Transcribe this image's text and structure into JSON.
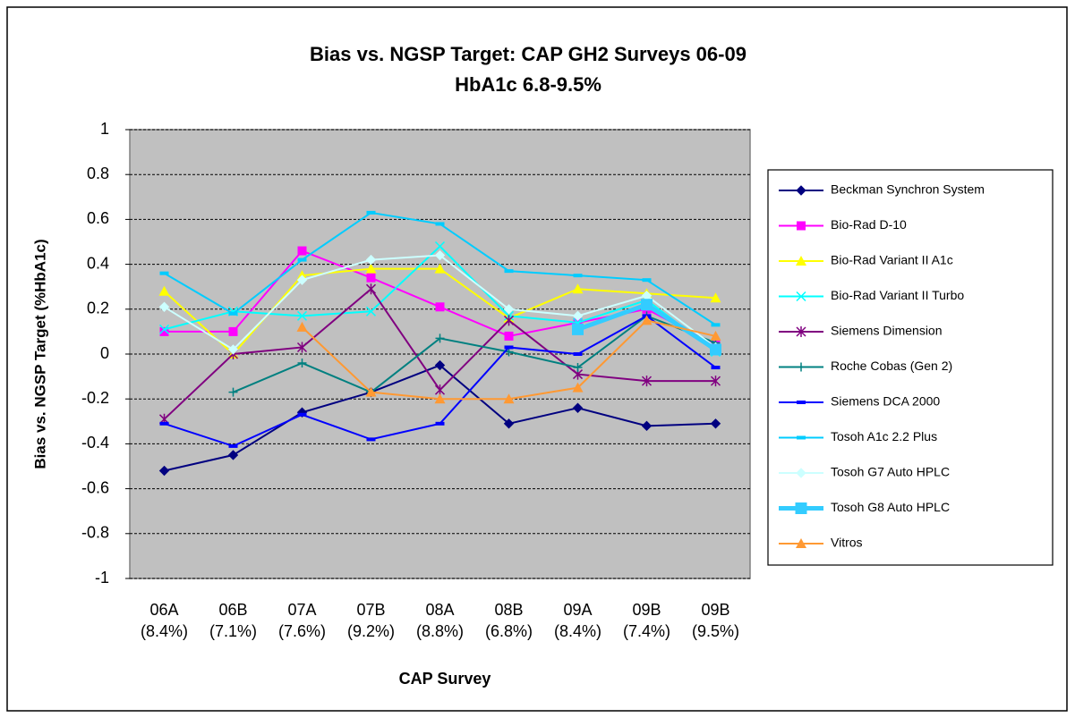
{
  "chart_data": {
    "type": "line",
    "title": "Bias vs. NGSP Target: CAP GH2 Surveys 06-09",
    "subtitle": "HbA1c 6.8-9.5%",
    "x_label": "CAP Survey",
    "y_label": "Bias vs. NGSP Target (%HbA1c)",
    "categories": [
      "06A (8.4%)",
      "06B (7.1%)",
      "07A (7.6%)",
      "07B (9.2%)",
      "08A (8.8%)",
      "08B (6.8%)",
      "09A (8.4%)",
      "09B (7.4%)",
      "09B (9.5%)"
    ],
    "ylim": [
      -1,
      1
    ],
    "yticks": [
      -1,
      -0.8,
      -0.6,
      -0.4,
      -0.2,
      0,
      0.2,
      0.4,
      0.6,
      0.8,
      1
    ],
    "grid": true,
    "legend": "right",
    "series": [
      {
        "name": "Beckman Synchron System",
        "color": "#000080",
        "marker": "diamond",
        "values": [
          -0.52,
          -0.45,
          -0.26,
          -0.17,
          -0.05,
          -0.31,
          -0.24,
          -0.32,
          -0.31
        ]
      },
      {
        "name": "Bio-Rad D-10",
        "color": "#ff00ff",
        "marker": "square",
        "values": [
          0.1,
          0.1,
          0.46,
          0.34,
          0.21,
          0.08,
          0.14,
          0.2,
          0.04
        ]
      },
      {
        "name": "Bio-Rad Variant II A1c",
        "color": "#ffff00",
        "marker": "triangle",
        "values": [
          0.28,
          0.0,
          0.35,
          0.38,
          0.38,
          0.16,
          0.29,
          0.27,
          0.25
        ]
      },
      {
        "name": "Bio-Rad Variant II Turbo",
        "color": "#00ffff",
        "marker": "x",
        "values": [
          0.11,
          0.19,
          0.17,
          0.19,
          0.48,
          0.17,
          0.14,
          0.24,
          0.01
        ]
      },
      {
        "name": "Siemens Dimension",
        "color": "#800080",
        "marker": "star",
        "values": [
          -0.29,
          0.0,
          0.03,
          0.29,
          -0.16,
          0.15,
          -0.09,
          -0.12,
          -0.12
        ]
      },
      {
        "name": "Roche Cobas (Gen 2)",
        "color": "#008080",
        "marker": "plus",
        "values": [
          null,
          -0.17,
          -0.04,
          -0.17,
          0.07,
          0.01,
          -0.06,
          0.17,
          0.05
        ]
      },
      {
        "name": "Siemens DCA 2000",
        "color": "#0000ff",
        "marker": "dash",
        "values": [
          -0.31,
          -0.41,
          -0.27,
          -0.38,
          -0.31,
          0.03,
          0.0,
          0.17,
          -0.06
        ]
      },
      {
        "name": "Tosoh A1c 2.2 Plus",
        "color": "#00ccff",
        "marker": "dash",
        "values": [
          0.36,
          0.18,
          0.42,
          0.63,
          0.58,
          0.37,
          0.35,
          0.33,
          0.13
        ]
      },
      {
        "name": "Tosoh G7 Auto HPLC",
        "color": "#ccffff",
        "marker": "diamond",
        "values": [
          0.21,
          0.02,
          0.33,
          0.42,
          0.44,
          0.2,
          0.17,
          0.26,
          0.03
        ]
      },
      {
        "name": "Tosoh G8 Auto HPLC",
        "color": "#33ccff",
        "marker": "square",
        "width": 5,
        "values": [
          null,
          null,
          null,
          null,
          null,
          null,
          0.11,
          0.22,
          0.02
        ]
      },
      {
        "name": "Vitros",
        "color": "#ff9933",
        "marker": "triangle",
        "values": [
          null,
          null,
          0.12,
          -0.17,
          -0.2,
          -0.2,
          -0.15,
          0.15,
          0.08
        ]
      }
    ]
  }
}
